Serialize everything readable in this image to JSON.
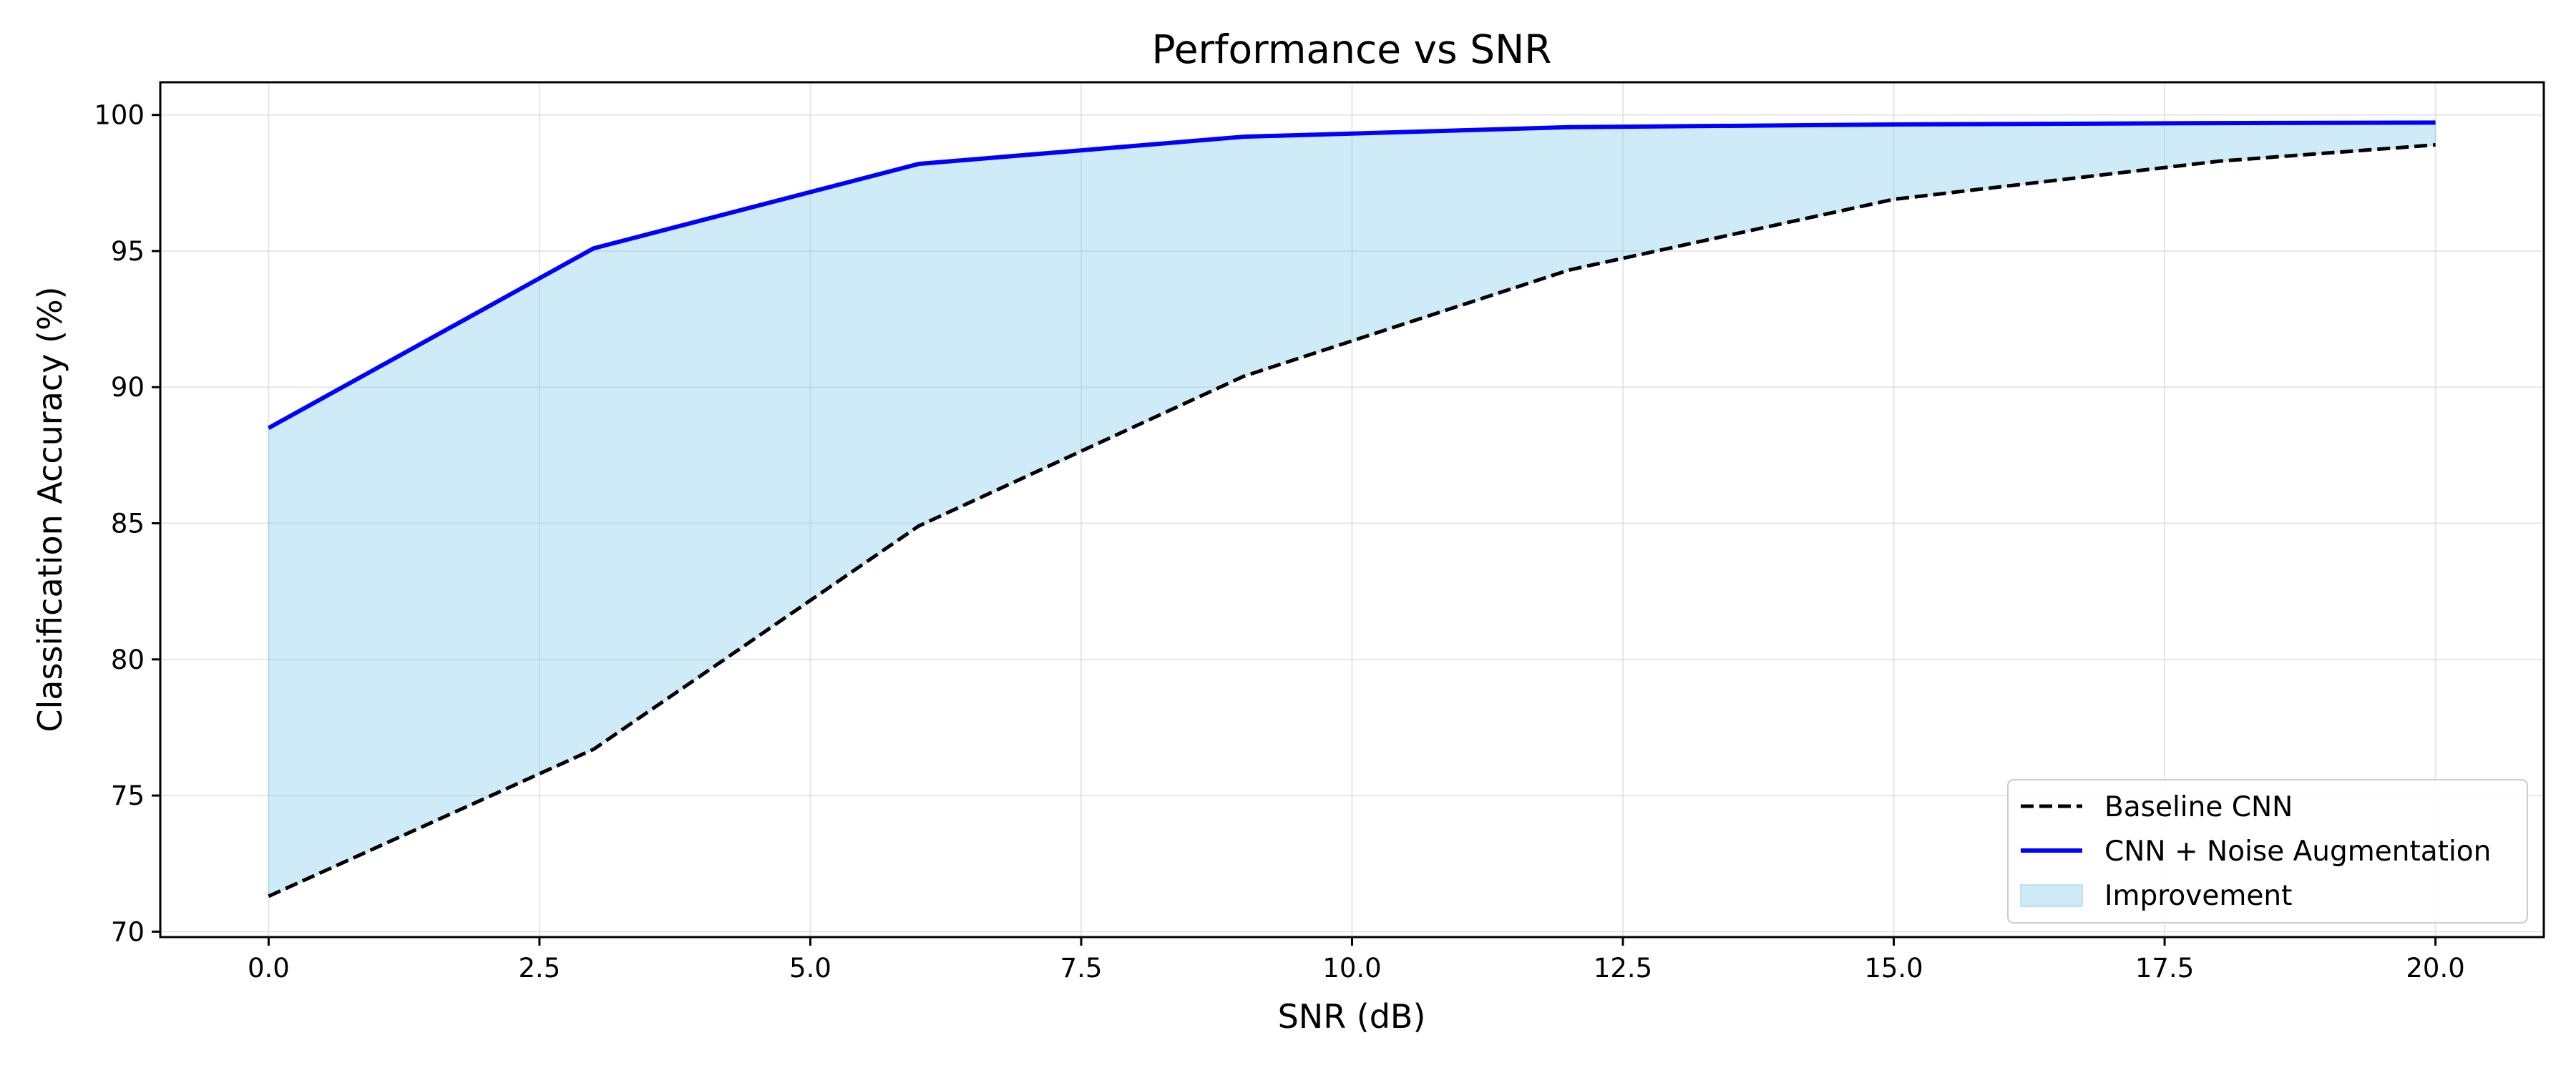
{
  "chart_data": {
    "type": "line",
    "title": "Performance vs SNR",
    "xlabel": "SNR (dB)",
    "ylabel": "Classification Accuracy (%)",
    "xlim": [
      -1.0,
      21.0
    ],
    "ylim": [
      69.8,
      101.2
    ],
    "x_ticks": [
      0.0,
      2.5,
      5.0,
      7.5,
      10.0,
      12.5,
      15.0,
      17.5,
      20.0
    ],
    "x_tick_labels": [
      "0.0",
      "2.5",
      "5.0",
      "7.5",
      "10.0",
      "12.5",
      "15.0",
      "17.5",
      "20.0"
    ],
    "y_ticks": [
      70,
      75,
      80,
      85,
      90,
      95,
      100
    ],
    "y_tick_labels": [
      "70",
      "75",
      "80",
      "85",
      "90",
      "95",
      "100"
    ],
    "grid": true,
    "legend_position": "lower-right",
    "x": [
      0,
      3,
      6,
      9,
      12,
      15,
      18,
      20
    ],
    "series": [
      {
        "name": "Baseline CNN",
        "values": [
          71.3,
          76.7,
          84.9,
          90.4,
          94.3,
          96.9,
          98.3,
          98.9
        ],
        "color": "#000000",
        "style": "dashed"
      },
      {
        "name": "CNN + Noise Augmentation",
        "values": [
          88.5,
          95.1,
          98.2,
          99.2,
          99.55,
          99.65,
          99.7,
          99.72
        ],
        "color": "#0000ff",
        "style": "solid"
      }
    ],
    "fill_between": {
      "name": "Improvement",
      "lower_series": "Baseline CNN",
      "upper_series": "CNN + Noise Augmentation",
      "color": "#87ceeb"
    }
  }
}
